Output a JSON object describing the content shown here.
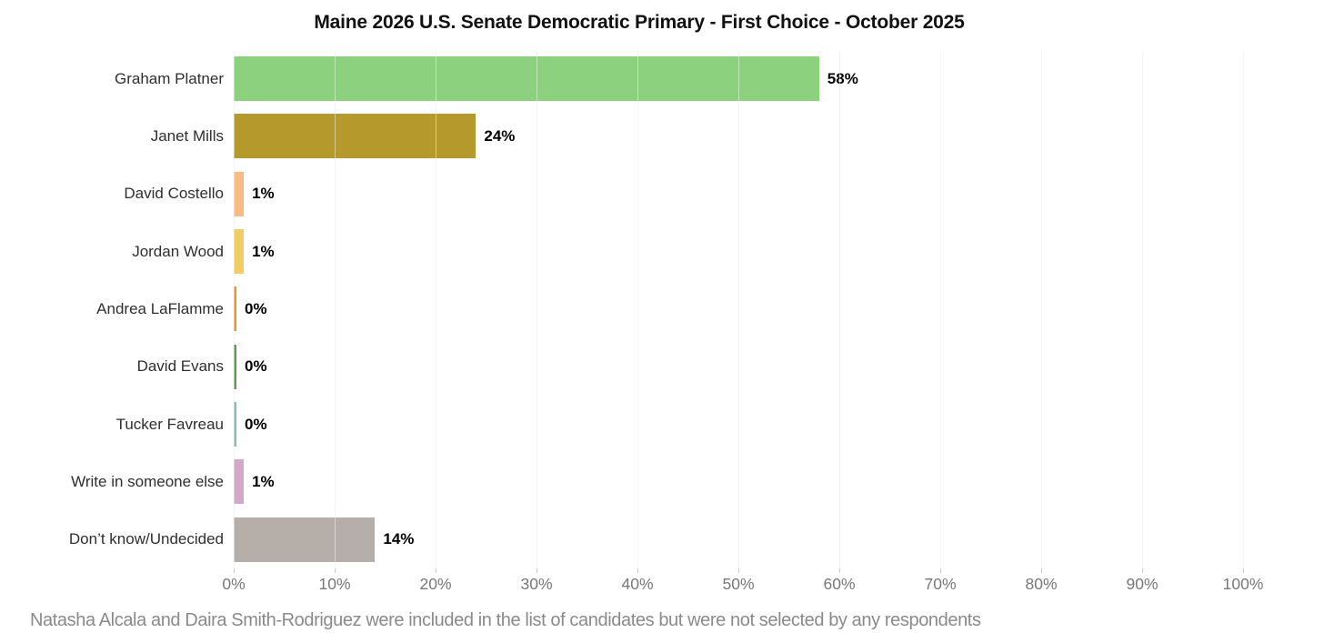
{
  "title": "Maine 2026 U.S. Senate Democratic Primary - First Choice - October 2025",
  "footnote": "Natasha Alcala and Daira Smith-Rodriguez were included in the list of candidates but were not selected by any respondents",
  "colors": {
    "background": "#ffffff",
    "title_text": "#111111",
    "category_text": "#2f2f2f",
    "value_text": "#000000",
    "axis_text": "#787878",
    "footnote_text": "#8a8a8a",
    "gridline": "#ececec"
  },
  "chart_data": {
    "type": "bar",
    "orientation": "horizontal",
    "title": "Maine 2026 U.S. Senate Democratic Primary - First Choice - October 2025",
    "categories": [
      "Graham Platner",
      "Janet Mills",
      "David Costello",
      "Jordan Wood",
      "Andrea LaFlamme",
      "David Evans",
      "Tucker Favreau",
      "Write in someone else",
      "Don’t know/Undecided"
    ],
    "values": [
      58,
      24,
      1,
      1,
      0,
      0,
      0,
      1,
      14
    ],
    "value_labels": [
      "58%",
      "24%",
      "1%",
      "1%",
      "0%",
      "0%",
      "0%",
      "1%",
      "14%"
    ],
    "bar_colors": [
      "#8CD17D",
      "#B6992D",
      "#F9BA84",
      "#F1CE63",
      "#F28E2B",
      "#59A14F",
      "#86BCB6",
      "#D4A6C8",
      "#B6AEA8"
    ],
    "xlabel": "",
    "ylabel": "",
    "xlim": [
      0,
      100
    ],
    "x_tick_values": [
      0,
      10,
      20,
      30,
      40,
      50,
      60,
      70,
      80,
      90,
      100
    ],
    "x_tick_labels": [
      "0%",
      "10%",
      "20%",
      "30%",
      "40%",
      "50%",
      "60%",
      "70%",
      "80%",
      "90%",
      "100%"
    ],
    "grid": "vertical",
    "legend_position": "none"
  }
}
